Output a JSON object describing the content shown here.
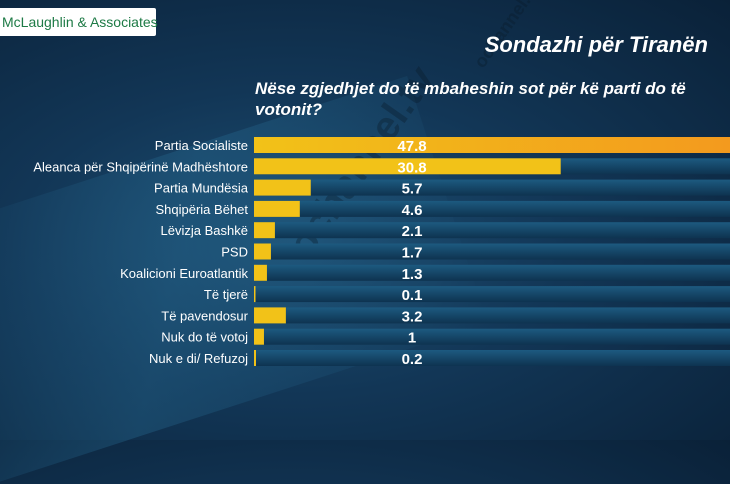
{
  "logo": {
    "text": "McLaughlin & Associates"
  },
  "watermark": {
    "text": "ochannel.tv"
  },
  "chart_data": {
    "type": "bar",
    "orientation": "horizontal",
    "title": "Sondazhi për Tiranën",
    "subtitle": "Nëse zgjedhjet do të mbaheshin sot për kë parti do të votonit?",
    "categories": [
      "Partia Socialiste",
      "Aleanca për Shqipërinë Madhështore",
      "Partia Mundësia",
      "Shqipëria Bëhet",
      "Lëvizja Bashkë",
      "PSD",
      "Koalicioni Euroatlantik",
      "Të tjerë",
      "Të pavendosur",
      "Nuk do të votoj",
      "Nuk e di/ Refuzoj"
    ],
    "values": [
      47.8,
      30.8,
      5.7,
      4.6,
      2.1,
      1.7,
      1.3,
      0.1,
      3.2,
      1,
      0.2
    ],
    "value_labels": [
      "47.8",
      "30.8",
      "5.7",
      "4.6",
      "2.1",
      "1.7",
      "1.3",
      "0.1",
      "3.2",
      "1",
      "0.2"
    ],
    "xlim": [
      0,
      47.8
    ],
    "grid": false,
    "colors": {
      "bar": "#f2c218",
      "bar_top_end": "#f39a1e",
      "track": "#0e3350",
      "track_highlight": "#1d5a80"
    }
  }
}
